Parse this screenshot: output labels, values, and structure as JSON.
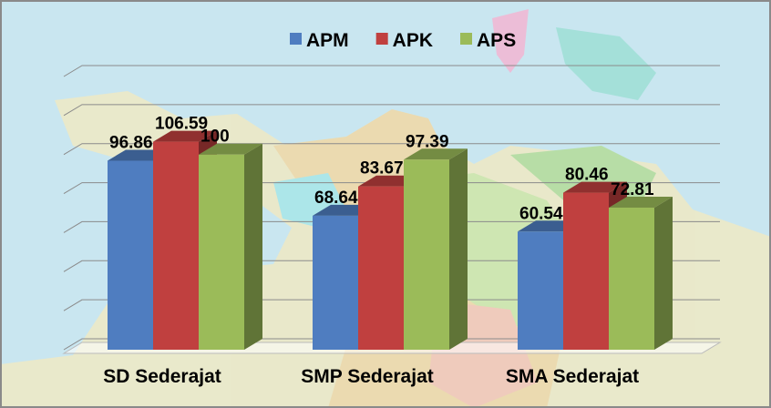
{
  "chart_data": {
    "type": "bar3d",
    "categories": [
      "SD Sederajat",
      "SMP Sederajat",
      "SMA Sederajat"
    ],
    "series": [
      {
        "name": "APM",
        "color": "#4f7dc0",
        "values": [
          96.86,
          68.64,
          60.54
        ]
      },
      {
        "name": "APK",
        "color": "#c0403f",
        "values": [
          106.59,
          83.67,
          80.46
        ]
      },
      {
        "name": "APS",
        "color": "#9bbb59",
        "values": [
          100,
          97.39,
          72.81
        ]
      }
    ],
    "ylim": [
      0,
      140
    ],
    "yticks": [
      0,
      20,
      40,
      60,
      80,
      100,
      120,
      140
    ],
    "grid": true,
    "legend": "top"
  }
}
